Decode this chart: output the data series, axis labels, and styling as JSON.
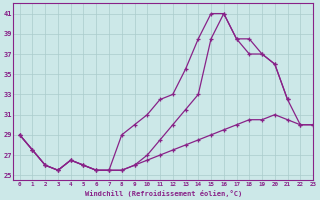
{
  "background_color": "#cce8e8",
  "grid_color": "#aacccc",
  "line_color": "#882288",
  "xlim": [
    -0.5,
    23
  ],
  "ylim": [
    24.5,
    42
  ],
  "yticks": [
    25,
    27,
    29,
    31,
    33,
    35,
    37,
    39,
    41
  ],
  "xticks": [
    0,
    1,
    2,
    3,
    4,
    5,
    6,
    7,
    8,
    9,
    10,
    11,
    12,
    13,
    14,
    15,
    16,
    17,
    18,
    19,
    20,
    21,
    22,
    23
  ],
  "xlabel": "Windchill (Refroidissement éolien,°C)",
  "line1_x": [
    0,
    1,
    2,
    3,
    4,
    5,
    6,
    7,
    8,
    9,
    10,
    11,
    12,
    13,
    14,
    15,
    16,
    17,
    18,
    19,
    20,
    21
  ],
  "line1_y": [
    29,
    27.5,
    26,
    25.5,
    26.5,
    26,
    25.5,
    25.5,
    29,
    30,
    31,
    32.5,
    33,
    35.5,
    38.5,
    41,
    41,
    38.5,
    37,
    37,
    36,
    32.5
  ],
  "line2_x": [
    0,
    1,
    2,
    3,
    4,
    5,
    6,
    7,
    8,
    9,
    10,
    11,
    12,
    13,
    14,
    15,
    16,
    17,
    18,
    19,
    20,
    21,
    22,
    23
  ],
  "line2_y": [
    29,
    27.5,
    26,
    25.5,
    26.5,
    26,
    25.5,
    25.5,
    25.5,
    26,
    27,
    28.5,
    30,
    31.5,
    33,
    38.5,
    41,
    38.5,
    38.5,
    37,
    36,
    32.5,
    30,
    30
  ],
  "line3_x": [
    0,
    1,
    2,
    3,
    4,
    5,
    6,
    7,
    8,
    9,
    10,
    11,
    12,
    13,
    14,
    15,
    16,
    17,
    18,
    19,
    20,
    21,
    22,
    23
  ],
  "line3_y": [
    29,
    27.5,
    26,
    25.5,
    26.5,
    26,
    25.5,
    25.5,
    25.5,
    26,
    26.5,
    27,
    27.5,
    28,
    28.5,
    29,
    29.5,
    30,
    30.5,
    30.5,
    31,
    30.5,
    30,
    30
  ]
}
